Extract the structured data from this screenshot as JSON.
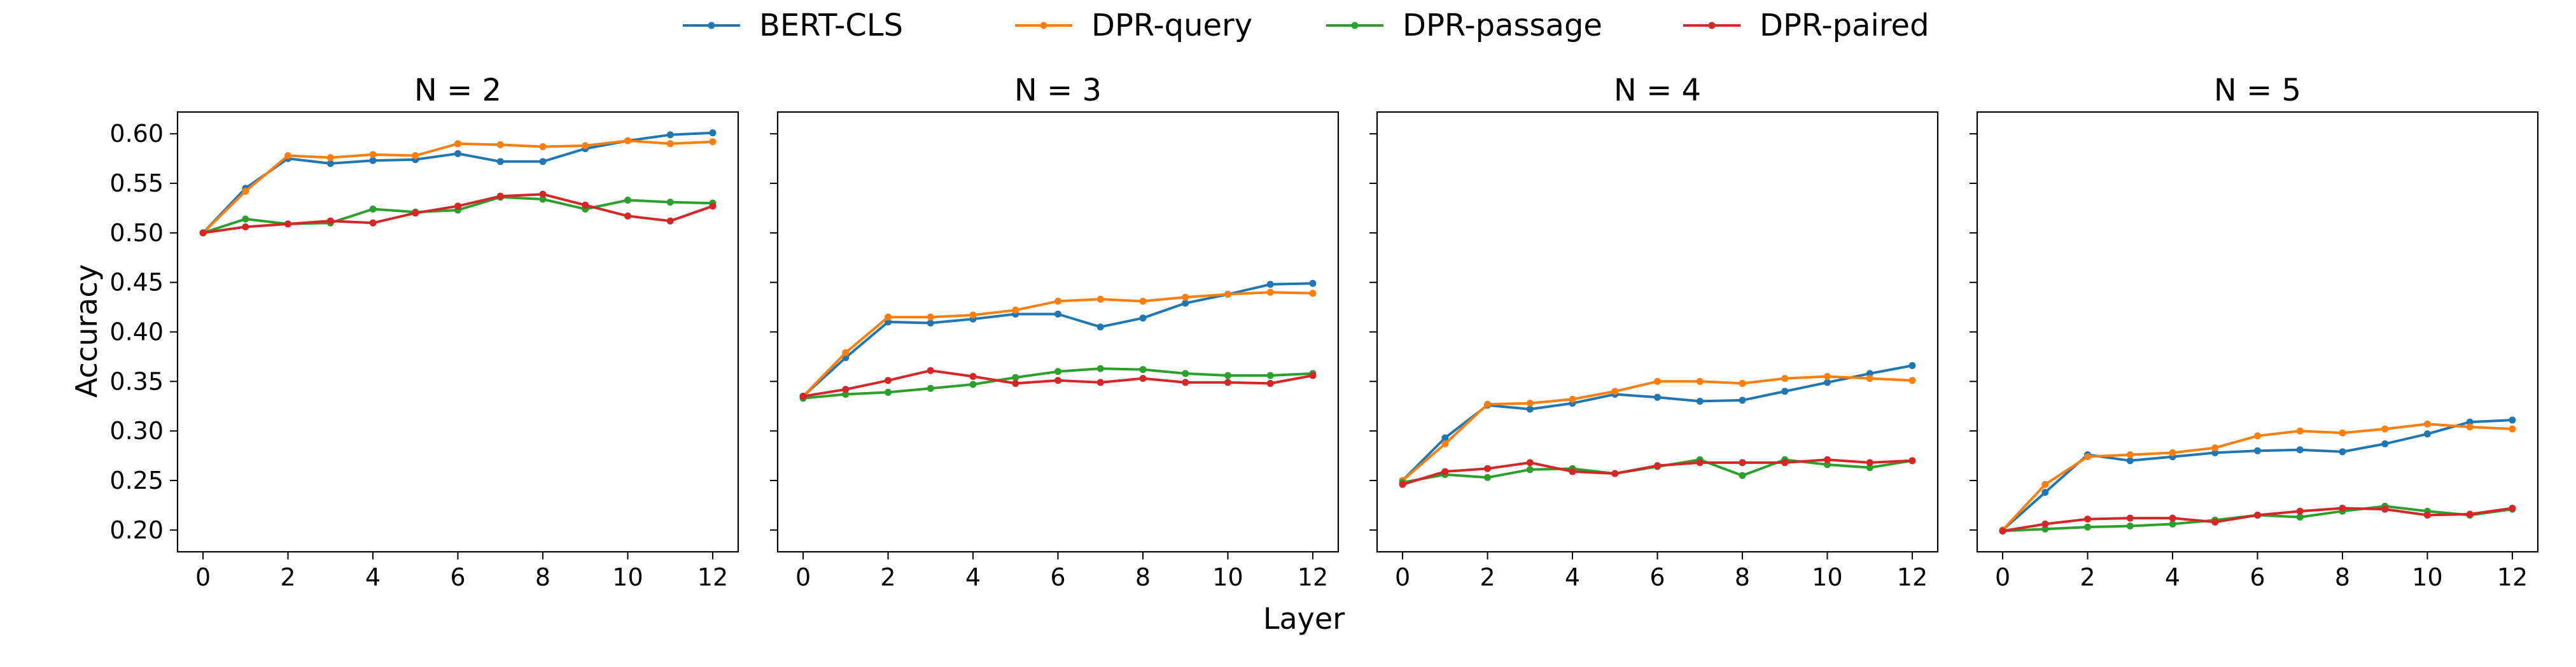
{
  "legend": {
    "placement": "top-center",
    "entries": [
      {
        "label": "BERT-CLS",
        "color": "#1f77b4"
      },
      {
        "label": "DPR-query",
        "color": "#ff7f0e"
      },
      {
        "label": "DPR-passage",
        "color": "#2ca02c"
      },
      {
        "label": "DPR-paired",
        "color": "#d62728"
      }
    ]
  },
  "shared_axes": {
    "xlabel": "Layer",
    "ylabel": "Accuracy",
    "xlim": [
      -0.6,
      12.6
    ],
    "ylim": [
      0.178,
      0.622
    ],
    "xticks": [
      0,
      2,
      4,
      6,
      8,
      10,
      12
    ],
    "yticks": [
      0.2,
      0.25,
      0.3,
      0.35,
      0.4,
      0.45,
      0.5,
      0.55,
      0.6
    ],
    "ytick_labels": [
      "0.20",
      "0.25",
      "0.30",
      "0.35",
      "0.40",
      "0.45",
      "0.50",
      "0.55",
      "0.60"
    ],
    "grid": false,
    "sharey": true
  },
  "chart_data": [
    {
      "type": "line",
      "title": "N = 2",
      "x": [
        0,
        1,
        2,
        3,
        4,
        5,
        6,
        7,
        8,
        9,
        10,
        11,
        12
      ],
      "series": [
        {
          "name": "BERT-CLS",
          "color": "#1f77b4",
          "values": [
            0.5,
            0.545,
            0.575,
            0.57,
            0.573,
            0.574,
            0.58,
            0.572,
            0.572,
            0.585,
            0.593,
            0.599,
            0.601
          ]
        },
        {
          "name": "DPR-query",
          "color": "#ff7f0e",
          "values": [
            0.5,
            0.542,
            0.578,
            0.576,
            0.579,
            0.578,
            0.59,
            0.589,
            0.587,
            0.588,
            0.593,
            0.59,
            0.592
          ]
        },
        {
          "name": "DPR-passage",
          "color": "#2ca02c",
          "values": [
            0.5,
            0.514,
            0.509,
            0.51,
            0.524,
            0.521,
            0.523,
            0.536,
            0.534,
            0.524,
            0.533,
            0.531,
            0.53
          ]
        },
        {
          "name": "DPR-paired",
          "color": "#d62728",
          "values": [
            0.5,
            0.506,
            0.509,
            0.512,
            0.51,
            0.52,
            0.527,
            0.537,
            0.539,
            0.528,
            0.517,
            0.512,
            0.527
          ]
        }
      ]
    },
    {
      "type": "line",
      "title": "N = 3",
      "x": [
        0,
        1,
        2,
        3,
        4,
        5,
        6,
        7,
        8,
        9,
        10,
        11,
        12
      ],
      "series": [
        {
          "name": "BERT-CLS",
          "color": "#1f77b4",
          "values": [
            0.335,
            0.374,
            0.41,
            0.409,
            0.413,
            0.418,
            0.418,
            0.405,
            0.414,
            0.429,
            0.438,
            0.448,
            0.449
          ]
        },
        {
          "name": "DPR-query",
          "color": "#ff7f0e",
          "values": [
            0.335,
            0.379,
            0.415,
            0.415,
            0.417,
            0.422,
            0.431,
            0.433,
            0.431,
            0.435,
            0.438,
            0.44,
            0.439
          ]
        },
        {
          "name": "DPR-passage",
          "color": "#2ca02c",
          "values": [
            0.333,
            0.337,
            0.339,
            0.343,
            0.347,
            0.354,
            0.36,
            0.363,
            0.362,
            0.358,
            0.356,
            0.356,
            0.358
          ]
        },
        {
          "name": "DPR-paired",
          "color": "#d62728",
          "values": [
            0.335,
            0.342,
            0.351,
            0.361,
            0.355,
            0.348,
            0.351,
            0.349,
            0.353,
            0.349,
            0.349,
            0.348,
            0.356
          ]
        }
      ]
    },
    {
      "type": "line",
      "title": "N = 4",
      "x": [
        0,
        1,
        2,
        3,
        4,
        5,
        6,
        7,
        8,
        9,
        10,
        11,
        12
      ],
      "series": [
        {
          "name": "BERT-CLS",
          "color": "#1f77b4",
          "values": [
            0.25,
            0.293,
            0.326,
            0.322,
            0.328,
            0.337,
            0.334,
            0.33,
            0.331,
            0.34,
            0.349,
            0.358,
            0.366
          ]
        },
        {
          "name": "DPR-query",
          "color": "#ff7f0e",
          "values": [
            0.25,
            0.287,
            0.327,
            0.328,
            0.332,
            0.34,
            0.35,
            0.35,
            0.348,
            0.353,
            0.355,
            0.353,
            0.351
          ]
        },
        {
          "name": "DPR-passage",
          "color": "#2ca02c",
          "values": [
            0.248,
            0.256,
            0.253,
            0.261,
            0.262,
            0.257,
            0.264,
            0.271,
            0.255,
            0.271,
            0.266,
            0.263,
            0.27
          ]
        },
        {
          "name": "DPR-paired",
          "color": "#d62728",
          "values": [
            0.246,
            0.259,
            0.262,
            0.268,
            0.259,
            0.257,
            0.265,
            0.268,
            0.268,
            0.268,
            0.271,
            0.268,
            0.27
          ]
        }
      ]
    },
    {
      "type": "line",
      "title": "N = 5",
      "x": [
        0,
        1,
        2,
        3,
        4,
        5,
        6,
        7,
        8,
        9,
        10,
        11,
        12
      ],
      "series": [
        {
          "name": "BERT-CLS",
          "color": "#1f77b4",
          "values": [
            0.2,
            0.238,
            0.276,
            0.27,
            0.274,
            0.278,
            0.28,
            0.281,
            0.279,
            0.287,
            0.297,
            0.309,
            0.311
          ]
        },
        {
          "name": "DPR-query",
          "color": "#ff7f0e",
          "values": [
            0.2,
            0.246,
            0.274,
            0.276,
            0.278,
            0.283,
            0.295,
            0.3,
            0.298,
            0.302,
            0.307,
            0.304,
            0.302
          ]
        },
        {
          "name": "DPR-passage",
          "color": "#2ca02c",
          "values": [
            0.199,
            0.201,
            0.203,
            0.204,
            0.206,
            0.21,
            0.215,
            0.213,
            0.219,
            0.224,
            0.219,
            0.215,
            0.221
          ]
        },
        {
          "name": "DPR-paired",
          "color": "#d62728",
          "values": [
            0.199,
            0.206,
            0.211,
            0.212,
            0.212,
            0.208,
            0.215,
            0.219,
            0.222,
            0.221,
            0.215,
            0.216,
            0.222
          ]
        }
      ]
    }
  ]
}
